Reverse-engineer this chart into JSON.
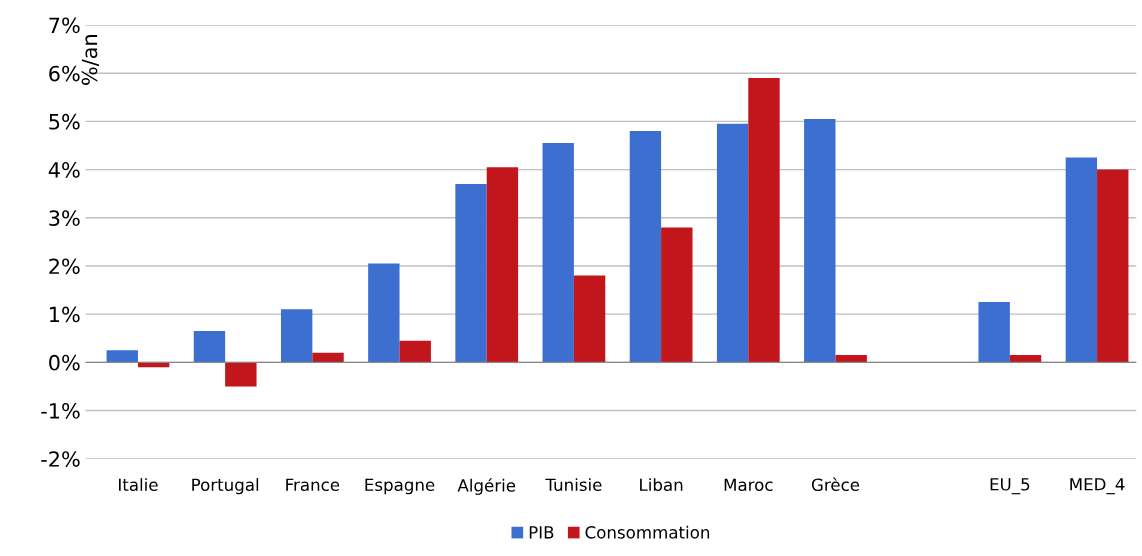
{
  "chart_data": {
    "type": "bar",
    "ylabel": "%/an",
    "categories": [
      "Italie",
      "Portugal",
      "France",
      "Espagne",
      "Algérie",
      "Tunisie",
      "Liban",
      "Maroc",
      "Grèce",
      null,
      "EU_5",
      "MED_4"
    ],
    "series": [
      {
        "name": "PIB",
        "color": "#3c6fd0",
        "values": [
          0.25,
          0.65,
          1.1,
          2.05,
          3.7,
          4.55,
          4.8,
          4.95,
          5.05,
          null,
          1.25,
          4.25
        ]
      },
      {
        "name": "Consommation",
        "color": "#c0161c",
        "values": [
          -0.1,
          -0.5,
          0.2,
          0.45,
          4.05,
          1.8,
          2.8,
          5.9,
          0.15,
          null,
          0.15,
          4.0
        ]
      }
    ],
    "ylim": [
      -2,
      7
    ],
    "yticks": [
      {
        "value": -2,
        "label": "-2%"
      },
      {
        "value": -1,
        "label": "-1%"
      },
      {
        "value": 0,
        "label": "0%"
      },
      {
        "value": 1,
        "label": "1%"
      },
      {
        "value": 2,
        "label": "2%"
      },
      {
        "value": 3,
        "label": "3%"
      },
      {
        "value": 4,
        "label": "4%"
      },
      {
        "value": 5,
        "label": "5%"
      },
      {
        "value": 6,
        "label": "6%"
      },
      {
        "value": 7,
        "label": "7%"
      }
    ],
    "grid": "y",
    "legend": "bottom"
  }
}
